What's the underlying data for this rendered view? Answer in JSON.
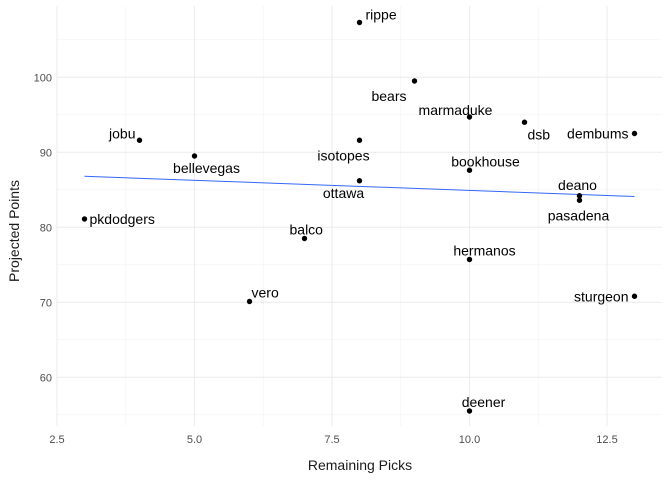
{
  "chart_data": {
    "type": "scatter",
    "xlabel": "Remaining Picks",
    "ylabel": "Projected Points",
    "xlim": [
      2.5,
      13.5
    ],
    "ylim": [
      53.5,
      109.5
    ],
    "x_ticks": [
      2.5,
      5.0,
      7.5,
      10.0,
      12.5
    ],
    "x_tick_labels": [
      "2.5",
      "5.0",
      "7.5",
      "10.0",
      "12.5"
    ],
    "y_ticks": [
      60,
      70,
      80,
      90,
      100
    ],
    "y_tick_labels": [
      "60",
      "70",
      "80",
      "90",
      "100"
    ],
    "grid": true,
    "points": [
      {
        "label": "rippe",
        "x": 8,
        "y": 107.3
      },
      {
        "label": "bears",
        "x": 9,
        "y": 99.5
      },
      {
        "label": "marmaduke",
        "x": 10,
        "y": 94.7
      },
      {
        "label": "dsb",
        "x": 11,
        "y": 94.0
      },
      {
        "label": "dembums",
        "x": 13,
        "y": 92.5
      },
      {
        "label": "jobu",
        "x": 4,
        "y": 91.6
      },
      {
        "label": "isotopes",
        "x": 8,
        "y": 91.6
      },
      {
        "label": "bellevegas",
        "x": 5,
        "y": 89.5
      },
      {
        "label": "bookhouse",
        "x": 10,
        "y": 87.6
      },
      {
        "label": "ottawa",
        "x": 8,
        "y": 86.2
      },
      {
        "label": "deano",
        "x": 12,
        "y": 84.2
      },
      {
        "label": "pasadena",
        "x": 12,
        "y": 83.6
      },
      {
        "label": "pkdodgers",
        "x": 3,
        "y": 81.1
      },
      {
        "label": "balco",
        "x": 7,
        "y": 78.5
      },
      {
        "label": "hermanos",
        "x": 10,
        "y": 75.7
      },
      {
        "label": "sturgeon",
        "x": 13,
        "y": 70.8
      },
      {
        "label": "vero",
        "x": 6,
        "y": 70.1
      },
      {
        "label": "deener",
        "x": 10,
        "y": 55.5
      }
    ],
    "trend_line": {
      "x": [
        3,
        13
      ],
      "y": [
        86.8,
        84.1
      ],
      "color": "#3366ff"
    }
  }
}
